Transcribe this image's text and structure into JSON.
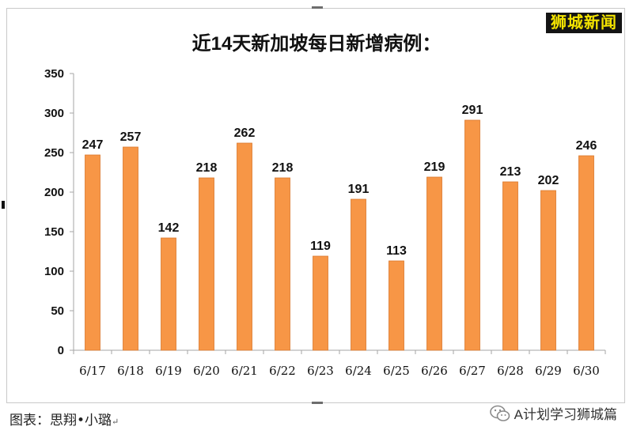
{
  "brand": {
    "text": "狮城新闻",
    "bg_color": "#141414",
    "text_color": "#f4e400"
  },
  "credit": {
    "text": "图表：思翔•小璐",
    "mark": "↵"
  },
  "watermark": {
    "text": "A计划学习狮城篇",
    "icon": "wechat-icon"
  },
  "chart_data": {
    "type": "bar",
    "title": "近14天新加坡每日新增病例：",
    "xlabel": "",
    "ylabel": "",
    "categories": [
      "6/17",
      "6/18",
      "6/19",
      "6/20",
      "6/21",
      "6/22",
      "6/23",
      "6/24",
      "6/25",
      "6/26",
      "6/27",
      "6/28",
      "6/29",
      "6/30"
    ],
    "values": [
      247,
      257,
      142,
      218,
      262,
      218,
      119,
      191,
      113,
      219,
      291,
      213,
      202,
      246
    ],
    "ylim": [
      0,
      350
    ],
    "yticks": [
      0,
      50,
      100,
      150,
      200,
      250,
      300,
      350
    ],
    "data_labels": true,
    "grid": false,
    "legend": "none",
    "bar_color": "#f79646",
    "bar_edge_color": "#d9782c"
  }
}
